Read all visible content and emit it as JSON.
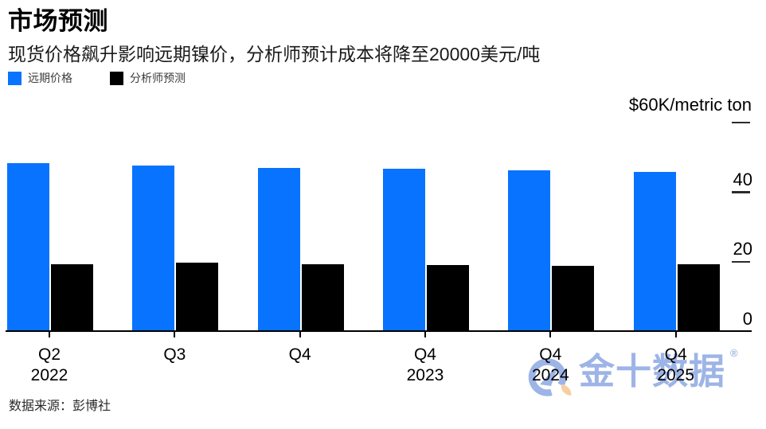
{
  "header": {
    "title": "市场预测",
    "subtitle": "现货价格飙升影响远期镍价，分析师预计成本将降至20000美元/吨"
  },
  "legend": {
    "items": [
      {
        "label": "远期价格",
        "color": "#0873ff"
      },
      {
        "label": "分析师预测",
        "color": "#000000"
      }
    ]
  },
  "chart_data": {
    "type": "bar",
    "title": "市场预测",
    "subtitle": "现货价格飙升影响远期镍价，分析师预计成本将降至20000美元/吨",
    "unit_label": "$60K/metric ton",
    "xlabel": "",
    "ylabel": "$60K/metric ton",
    "categories": [
      "Q2 2022",
      "Q3",
      "Q4",
      "Q4 2023",
      "Q4 2024",
      "Q4 2025"
    ],
    "series": [
      {
        "name": "远期价格",
        "color": "#0873ff",
        "values": [
          48.3,
          47.7,
          47.1,
          46.7,
          46.3,
          46.0
        ]
      },
      {
        "name": "分析师预测",
        "color": "#000000",
        "values": [
          19.5,
          19.9,
          19.3,
          19.2,
          18.9,
          19.4
        ]
      }
    ],
    "ylim": [
      0,
      60
    ],
    "yticks": [
      0,
      20,
      40,
      60
    ],
    "grid": false,
    "legend_position": "top-left"
  },
  "source": "数据来源：彭博社",
  "watermark": {
    "text": "金十数据",
    "registered": "®",
    "color": "#9db4e6",
    "accent_color": "#f6cfa0"
  }
}
